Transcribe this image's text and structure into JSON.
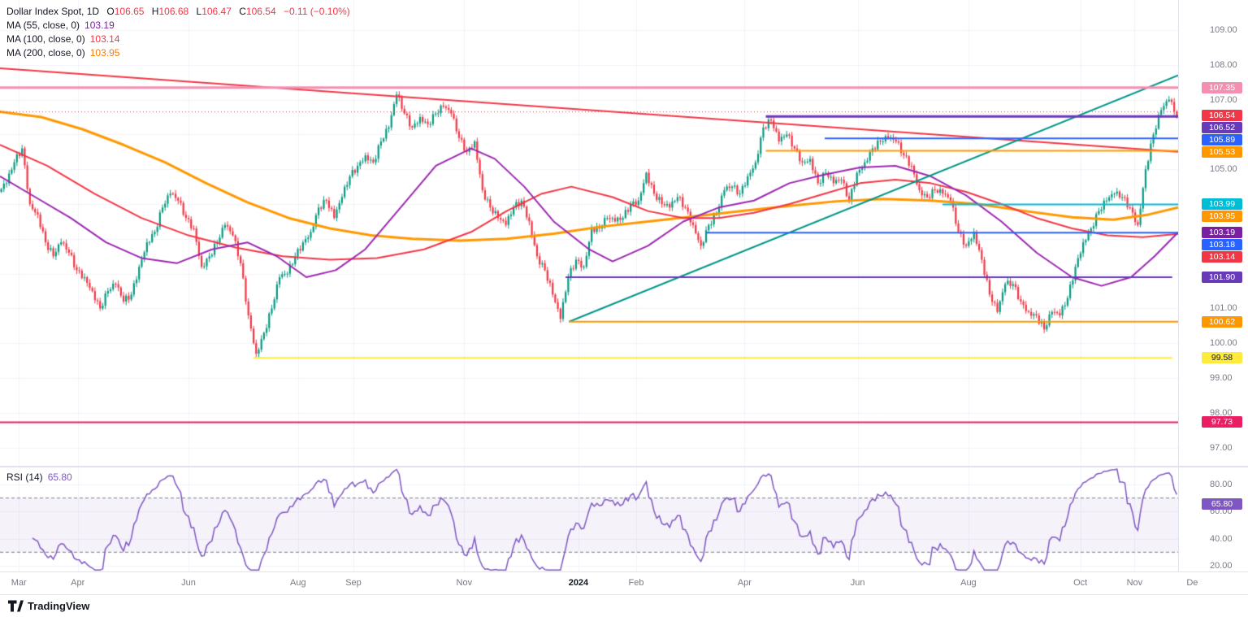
{
  "header": {
    "symbol_title": "Dollar Index Spot, 1D",
    "ohlc": {
      "o_label": "O",
      "o": "106.65",
      "h_label": "H",
      "h": "106.68",
      "l_label": "L",
      "l": "106.47",
      "c_label": "C",
      "c": "106.54",
      "change": "−0.11 (−0.10%)"
    },
    "ma_legend": [
      {
        "label": "MA (55, close, 0)",
        "value": "103.19",
        "color": "#7b1fa2"
      },
      {
        "label": "MA (100, close, 0)",
        "value": "103.14",
        "color": "#f23645"
      },
      {
        "label": "MA (200, close, 0)",
        "value": "103.95",
        "color": "#f57c00"
      }
    ]
  },
  "rsi_legend": {
    "label": "RSI (14)",
    "value": "65.80"
  },
  "footer": {
    "logo_text": "TradingView"
  },
  "chart_data": {
    "type": "candlestick",
    "title": "Dollar Index Spot, 1D",
    "ylim": [
      96.48,
      109.864
    ],
    "grid": true,
    "colors": {
      "up": "#089981",
      "down": "#f23645",
      "grid": "#f0f3fa",
      "ma55": "#9c27b0",
      "ma100": "#f23645",
      "ma200": "#ff9800",
      "trend_red": "#f23645",
      "trend_teal": "#009688",
      "rsi_line": "#7e57c2",
      "rsi_band_fill": "rgba(126,87,194,0.08)",
      "rsi_band_line": "#787b86"
    },
    "y_axis": {
      "ticks": [
        "109.00",
        "108.00",
        "107.00",
        "105.00",
        "101.00",
        "100.00",
        "99.00",
        "98.00",
        "97.00"
      ]
    },
    "x_axis": {
      "labels": [
        {
          "label": "Mar",
          "f": 0.016
        },
        {
          "label": "Apr",
          "f": 0.066
        },
        {
          "label": "Jun",
          "f": 0.16
        },
        {
          "label": "Aug",
          "f": 0.253
        },
        {
          "label": "Sep",
          "f": 0.3
        },
        {
          "label": "Nov",
          "f": 0.394
        },
        {
          "label": "2024",
          "f": 0.491,
          "bold": true
        },
        {
          "label": "Feb",
          "f": 0.54
        },
        {
          "label": "Apr",
          "f": 0.632
        },
        {
          "label": "Jun",
          "f": 0.728
        },
        {
          "label": "Aug",
          "f": 0.822
        },
        {
          "label": "Oct",
          "f": 0.917
        },
        {
          "label": "Nov",
          "f": 0.963
        },
        {
          "label": "De",
          "f": 1.012
        }
      ]
    },
    "close": [
      104.6,
      105.2,
      105.6,
      104.0,
      103.7,
      102.9,
      102.5,
      102.9,
      102.6,
      102.1,
      101.9,
      101.5,
      101.0,
      101.5,
      101.7,
      101.2,
      101.4,
      102.2,
      102.9,
      103.2,
      103.9,
      104.3,
      104.1,
      103.6,
      103.3,
      102.2,
      102.5,
      102.9,
      103.4,
      103.1,
      102.3,
      100.8,
      99.7,
      100.3,
      101.0,
      101.9,
      102.0,
      102.5,
      102.9,
      103.2,
      103.9,
      104.1,
      103.6,
      104.2,
      104.8,
      105.1,
      105.4,
      105.2,
      105.8,
      106.2,
      107.15,
      106.6,
      106.2,
      106.5,
      106.3,
      106.6,
      106.8,
      106.6,
      105.9,
      105.5,
      105.8,
      104.4,
      103.9,
      103.6,
      103.4,
      103.9,
      104.1,
      103.5,
      102.5,
      102.1,
      101.4,
      100.7,
      101.9,
      102.4,
      102.2,
      103.3,
      103.3,
      103.6,
      103.5,
      103.6,
      104.0,
      104.1,
      104.9,
      104.3,
      104.0,
      103.9,
      104.2,
      103.9,
      103.4,
      102.8,
      103.4,
      103.7,
      104.4,
      104.5,
      104.3,
      104.8,
      105.2,
      106.2,
      106.4,
      105.8,
      106.0,
      105.6,
      105.2,
      105.3,
      104.6,
      104.9,
      104.6,
      104.7,
      104.1,
      104.9,
      105.2,
      105.6,
      105.8,
      105.9,
      105.8,
      105.4,
      105.1,
      104.4,
      104.2,
      104.4,
      104.3,
      104.1,
      103.2,
      102.8,
      103.2,
      102.4,
      101.4,
      100.9,
      101.7,
      101.7,
      101.2,
      100.9,
      100.8,
      100.4,
      100.9,
      100.8,
      101.3,
      102.2,
      102.9,
      103.3,
      103.8,
      104.1,
      104.3,
      104.2,
      103.9,
      103.4,
      105.0,
      106.0,
      106.7,
      107.0,
      106.54
    ],
    "overlays": {
      "ma55": {
        "name": "MA 55",
        "w": 2,
        "points": [
          [
            0,
            104.8
          ],
          [
            0.03,
            104.2
          ],
          [
            0.06,
            103.6
          ],
          [
            0.09,
            102.9
          ],
          [
            0.12,
            102.45
          ],
          [
            0.15,
            102.3
          ],
          [
            0.18,
            102.7
          ],
          [
            0.21,
            102.9
          ],
          [
            0.235,
            102.5
          ],
          [
            0.26,
            101.9
          ],
          [
            0.285,
            102.1
          ],
          [
            0.31,
            102.7
          ],
          [
            0.34,
            103.9
          ],
          [
            0.37,
            105.1
          ],
          [
            0.4,
            105.6
          ],
          [
            0.42,
            105.3
          ],
          [
            0.445,
            104.5
          ],
          [
            0.47,
            103.5
          ],
          [
            0.5,
            102.7
          ],
          [
            0.52,
            102.35
          ],
          [
            0.55,
            102.8
          ],
          [
            0.58,
            103.5
          ],
          [
            0.61,
            103.9
          ],
          [
            0.64,
            104.1
          ],
          [
            0.67,
            104.6
          ],
          [
            0.7,
            104.85
          ],
          [
            0.73,
            105.05
          ],
          [
            0.76,
            105.1
          ],
          [
            0.79,
            104.8
          ],
          [
            0.82,
            104.25
          ],
          [
            0.85,
            103.5
          ],
          [
            0.88,
            102.6
          ],
          [
            0.91,
            101.9
          ],
          [
            0.935,
            101.65
          ],
          [
            0.96,
            101.9
          ],
          [
            0.98,
            102.5
          ],
          [
            1,
            103.19
          ]
        ]
      },
      "ma100": {
        "name": "MA 100",
        "w": 2,
        "points": [
          [
            0,
            105.7
          ],
          [
            0.04,
            105.1
          ],
          [
            0.08,
            104.3
          ],
          [
            0.12,
            103.6
          ],
          [
            0.16,
            103.1
          ],
          [
            0.2,
            102.75
          ],
          [
            0.24,
            102.5
          ],
          [
            0.28,
            102.4
          ],
          [
            0.32,
            102.45
          ],
          [
            0.36,
            102.7
          ],
          [
            0.4,
            103.2
          ],
          [
            0.43,
            103.8
          ],
          [
            0.46,
            104.3
          ],
          [
            0.485,
            104.5
          ],
          [
            0.52,
            104.2
          ],
          [
            0.55,
            103.8
          ],
          [
            0.58,
            103.6
          ],
          [
            0.61,
            103.6
          ],
          [
            0.64,
            103.75
          ],
          [
            0.67,
            104.0
          ],
          [
            0.7,
            104.3
          ],
          [
            0.73,
            104.6
          ],
          [
            0.76,
            104.7
          ],
          [
            0.79,
            104.6
          ],
          [
            0.82,
            104.35
          ],
          [
            0.85,
            104.0
          ],
          [
            0.88,
            103.6
          ],
          [
            0.91,
            103.3
          ],
          [
            0.94,
            103.1
          ],
          [
            0.97,
            103.05
          ],
          [
            1,
            103.14
          ]
        ]
      },
      "ma200": {
        "name": "MA 200",
        "w": 3,
        "points": [
          [
            0,
            106.65
          ],
          [
            0.035,
            106.5
          ],
          [
            0.07,
            106.15
          ],
          [
            0.105,
            105.7
          ],
          [
            0.14,
            105.2
          ],
          [
            0.175,
            104.6
          ],
          [
            0.21,
            104.05
          ],
          [
            0.245,
            103.6
          ],
          [
            0.28,
            103.3
          ],
          [
            0.315,
            103.1
          ],
          [
            0.35,
            103.0
          ],
          [
            0.39,
            102.95
          ],
          [
            0.43,
            103.0
          ],
          [
            0.47,
            103.15
          ],
          [
            0.51,
            103.35
          ],
          [
            0.55,
            103.5
          ],
          [
            0.59,
            103.65
          ],
          [
            0.63,
            103.8
          ],
          [
            0.67,
            103.95
          ],
          [
            0.71,
            104.08
          ],
          [
            0.75,
            104.15
          ],
          [
            0.79,
            104.1
          ],
          [
            0.83,
            104.0
          ],
          [
            0.87,
            103.8
          ],
          [
            0.91,
            103.62
          ],
          [
            0.945,
            103.55
          ],
          [
            0.975,
            103.7
          ],
          [
            1,
            103.9
          ]
        ]
      }
    },
    "levels": [
      {
        "price": 107.35,
        "color": "#f48fb1",
        "f1": 0,
        "f2": 1,
        "w": 3
      },
      {
        "price": 106.52,
        "color": "#673ab7",
        "f1": 0.65,
        "f2": 1,
        "w": 3
      },
      {
        "price": 105.89,
        "color": "#2962ff",
        "f1": 0.7,
        "f2": 1,
        "w": 2
      },
      {
        "price": 105.53,
        "color": "#ff9800",
        "f1": 0.65,
        "f2": 1,
        "w": 2
      },
      {
        "price": 103.99,
        "color": "#00bcd4",
        "f1": 0.8,
        "f2": 1,
        "w": 2
      },
      {
        "price": 103.18,
        "color": "#2962ff",
        "f1": 0.6,
        "f2": 1,
        "w": 2
      },
      {
        "price": 101.9,
        "color": "#673ab7",
        "f1": 0.48,
        "f2": 0.995,
        "w": 2
      },
      {
        "price": 100.62,
        "color": "#ff9800",
        "f1": 0.483,
        "f2": 1,
        "w": 2
      },
      {
        "price": 99.58,
        "color": "#ffeb3b",
        "f1": 0.215,
        "f2": 0.995,
        "w": 2
      },
      {
        "price": 97.73,
        "color": "#e91e63",
        "f1": 0,
        "f2": 1,
        "w": 2
      }
    ],
    "trendlines": [
      {
        "f1": 0,
        "p1": 107.9,
        "f2": 1,
        "p2": 105.5,
        "color": "#f23645",
        "w": 2
      },
      {
        "f1": 0.483,
        "p1": 100.62,
        "f2": 1,
        "p2": 107.7,
        "color": "#009688",
        "w": 2
      }
    ],
    "prev_close_line": {
      "price": 106.65,
      "color": "#f23645"
    },
    "badges": [
      {
        "text": "107.35",
        "bg": "#f48fb1",
        "fg": "#ffffff",
        "price": 107.35
      },
      {
        "text": "106.54",
        "bg": "#f23645",
        "fg": "#ffffff",
        "price": 106.54
      },
      {
        "text": "106.52",
        "bg": "#673ab7",
        "fg": "#ffffff",
        "price": 106.52
      },
      {
        "text": "105.89",
        "bg": "#2962ff",
        "fg": "#ffffff",
        "price": 105.89
      },
      {
        "text": "105.53",
        "bg": "#ff9800",
        "fg": "#ffffff",
        "price": 105.53
      },
      {
        "text": "103.99",
        "bg": "#00bcd4",
        "fg": "#ffffff",
        "price": 103.99
      },
      {
        "text": "103.95",
        "bg": "#ff9800",
        "fg": "#ffffff",
        "price": 103.95
      },
      {
        "text": "103.19",
        "bg": "#7b1fa2",
        "fg": "#ffffff",
        "price": 103.19
      },
      {
        "text": "103.18",
        "bg": "#2962ff",
        "fg": "#ffffff",
        "price": 103.18
      },
      {
        "text": "103.14",
        "bg": "#f23645",
        "fg": "#ffffff",
        "price": 103.14
      },
      {
        "text": "101.90",
        "bg": "#673ab7",
        "fg": "#ffffff",
        "price": 101.9
      },
      {
        "text": "100.62",
        "bg": "#ff9800",
        "fg": "#ffffff",
        "price": 100.62
      },
      {
        "text": "99.58",
        "bg": "#ffeb3b",
        "fg": "#131722",
        "price": 99.58
      },
      {
        "text": "97.73",
        "bg": "#e91e63",
        "fg": "#ffffff",
        "price": 97.73
      }
    ],
    "rsi": {
      "period": 14,
      "value": "65.80",
      "value_num": 65.8,
      "upper": 70,
      "lower": 30,
      "ylim": [
        15.8,
        92.6
      ],
      "ticks": [
        "80.00",
        "60.00",
        "40.00",
        "20.00"
      ]
    }
  }
}
